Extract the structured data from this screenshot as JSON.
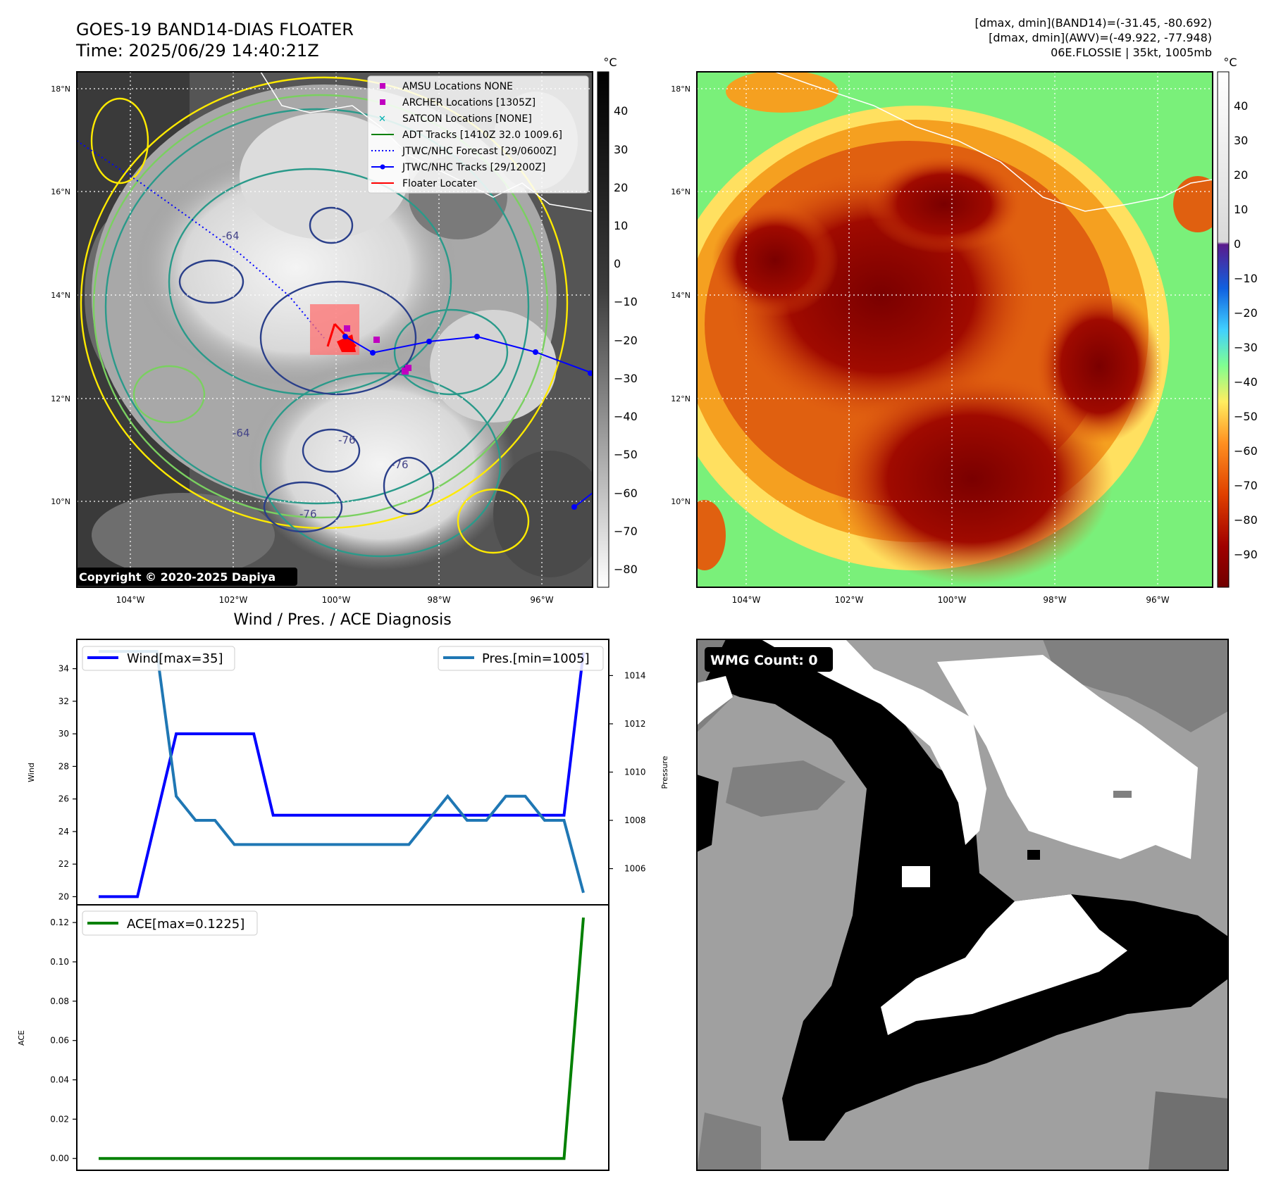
{
  "header": {
    "title_line1": "GOES-19 BAND14-DIAS FLOATER",
    "title_line2": "Time: 2025/06/29 14:40:21Z",
    "info_line1": "[dmax, dmin](BAND14)=(-31.45, -80.692)",
    "info_line2": "[dmax, dmin](AWV)=(-49.922, -77.948)",
    "info_line3": "06E.FLOSSIE | 35kt, 1005mb"
  },
  "maps": {
    "lat_labels": [
      "18°N",
      "16°N",
      "14°N",
      "12°N",
      "10°N"
    ],
    "lon_labels": [
      "104°W",
      "102°W",
      "100°W",
      "98°W",
      "96°W"
    ],
    "copyright": "Copyright © 2020-2025 Dapiya",
    "contour_labels": [
      "-64",
      "-76"
    ],
    "left_colorbar": {
      "unit": "°C",
      "ticks": [
        "40",
        "30",
        "20",
        "10",
        "0",
        "−10",
        "−20",
        "−30",
        "−40",
        "−50",
        "−60",
        "−70",
        "−80"
      ]
    },
    "right_colorbar": {
      "unit": "°C",
      "ticks": [
        "40",
        "30",
        "20",
        "10",
        "0",
        "−10",
        "−20",
        "−30",
        "−40",
        "−50",
        "−60",
        "−70",
        "−80",
        "−90"
      ]
    },
    "legend": [
      {
        "label": "AMSU Locations NONE",
        "color": "#c000c0",
        "marker": "square"
      },
      {
        "label": "ARCHER Locations [1305Z]",
        "color": "#c000c0",
        "marker": "square"
      },
      {
        "label": "SATCON Locations [NONE]",
        "color": "#00b0b0",
        "marker": "x"
      },
      {
        "label": "ADT Tracks [1410Z 32.0 1009.6]",
        "color": "#008000",
        "marker": "line"
      },
      {
        "label": "JTWC/NHC Forecast [29/0600Z]",
        "color": "#0000ff",
        "marker": "dotted"
      },
      {
        "label": "JTWC/NHC Tracks [29/1200Z]",
        "color": "#0000ff",
        "marker": "line-dot"
      },
      {
        "label": "Floater Locater",
        "color": "#ff0000",
        "marker": "line"
      }
    ],
    "colors": {
      "track": "#0000ff",
      "floater": "#ff0000",
      "archer": "#c000c0"
    }
  },
  "diagnosis": {
    "title": "Wind / Pres. / ACE Diagnosis",
    "wind_legend": "Wind[max=35]",
    "pres_legend": "Pres.[min=1005]",
    "ace_legend": "ACE[max=0.1225]",
    "wind_ylabel": "Wind",
    "pres_ylabel": "Pressure",
    "ace_ylabel": "ACE"
  },
  "wmg": {
    "label": "WMG Count: 0"
  },
  "chart_data": [
    {
      "type": "line",
      "x": [
        0,
        1,
        2,
        3,
        4,
        5,
        6,
        7,
        8,
        9,
        10,
        11,
        12,
        13,
        14,
        15,
        16,
        17,
        18,
        19,
        20,
        21,
        22,
        23,
        24,
        25
      ],
      "series": [
        {
          "name": "Wind[max=35]",
          "axis": "left",
          "color": "#0000ff",
          "values": [
            20,
            20,
            20,
            25,
            30,
            30,
            30,
            30,
            30,
            25,
            25,
            25,
            25,
            25,
            25,
            25,
            25,
            25,
            25,
            25,
            25,
            25,
            25,
            25,
            25,
            35
          ]
        },
        {
          "name": "Pres.[min=1005]",
          "axis": "right",
          "color": "#1f77b4",
          "values": [
            1015,
            1015,
            1015,
            1015,
            1009,
            1008,
            1008,
            1007,
            1007,
            1007,
            1007,
            1007,
            1007,
            1007,
            1007,
            1007,
            1007,
            1008,
            1009,
            1008,
            1008,
            1009,
            1009,
            1008,
            1008,
            1005
          ]
        }
      ],
      "ylabel": "Wind",
      "ylim": [
        19.5,
        35.8
      ],
      "y2label": "Pressure",
      "y2lim": [
        1004.5,
        1015.5
      ],
      "yticks": [
        20,
        22,
        24,
        26,
        28,
        30,
        32,
        34
      ],
      "y2ticks": [
        1006,
        1008,
        1010,
        1012,
        1014
      ]
    },
    {
      "type": "line",
      "x": [
        0,
        1,
        2,
        3,
        4,
        5,
        6,
        7,
        8,
        9,
        10,
        11,
        12,
        13,
        14,
        15,
        16,
        17,
        18,
        19,
        20,
        21,
        22,
        23,
        24,
        25
      ],
      "series": [
        {
          "name": "ACE[max=0.1225]",
          "color": "#008000",
          "values": [
            0,
            0,
            0,
            0,
            0,
            0,
            0,
            0,
            0,
            0,
            0,
            0,
            0,
            0,
            0,
            0,
            0,
            0,
            0,
            0,
            0,
            0,
            0,
            0,
            0,
            0.1225
          ]
        }
      ],
      "ylabel": "ACE",
      "ylim": [
        -0.006,
        0.129
      ],
      "yticks": [
        0,
        0.02,
        0.04,
        0.06,
        0.08,
        0.1,
        0.12
      ],
      "ytick_labels": [
        "0.00",
        "0.02",
        "0.04",
        "0.06",
        "0.08",
        "0.10",
        "0.12"
      ]
    }
  ]
}
